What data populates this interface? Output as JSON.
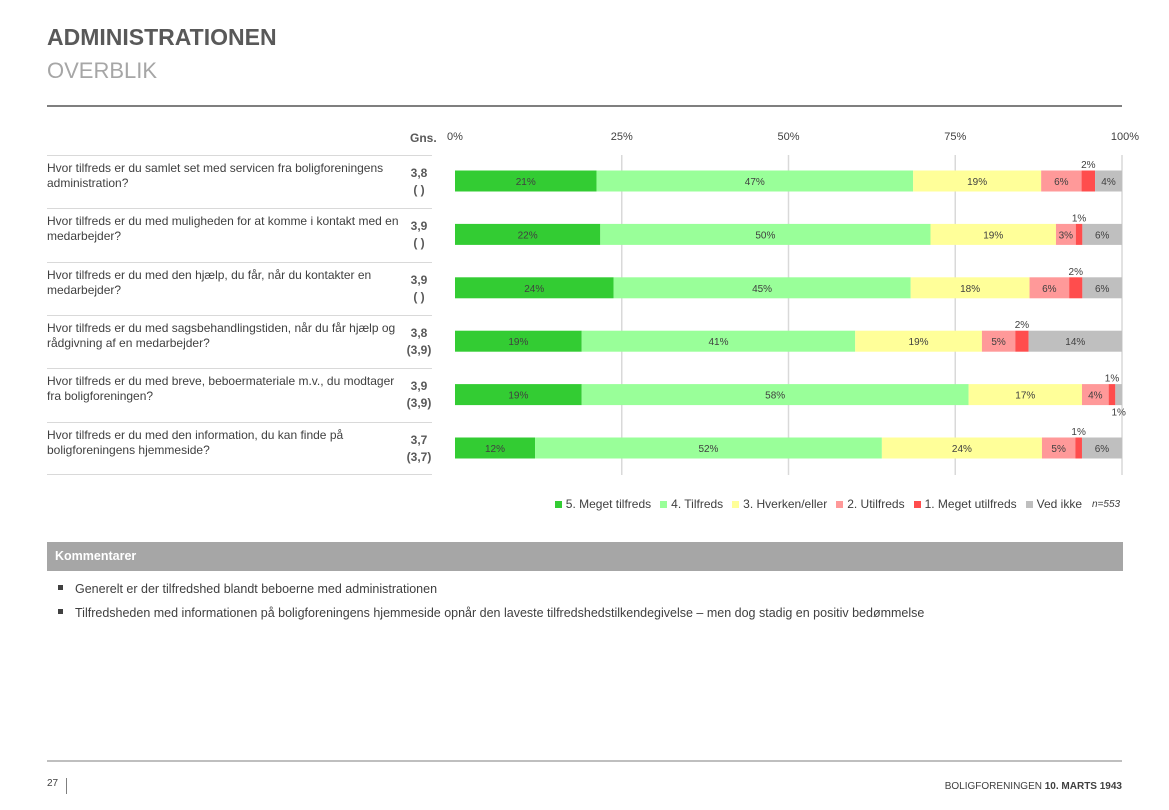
{
  "header": {
    "title": "ADMINISTRATIONEN",
    "subtitle": "OVERBLIK"
  },
  "table": {
    "gns_header": "Gns.",
    "rows": [
      {
        "question": "Hvor tilfreds er du samlet set med servicen fra boligforeningens administration?",
        "avg": "3,8",
        "prev": "(  )"
      },
      {
        "question": "Hvor tilfreds er du med muligheden for at komme i kontakt med en medarbejder?",
        "avg": "3,9",
        "prev": "(  )"
      },
      {
        "question": "Hvor tilfreds er du med den hjælp, du får, når du kontakter en medarbejder?",
        "avg": "3,9",
        "prev": "(  )"
      },
      {
        "question": "Hvor tilfreds er du med sagsbehandlingstiden, når du får hjælp og rådgivning af en medarbejder?",
        "avg": "3,8",
        "prev": "(3,9)"
      },
      {
        "question": "Hvor tilfreds er du med breve, beboermateriale m.v., du modtager fra boligforeningen?",
        "avg": "3,9",
        "prev": "(3,9)"
      },
      {
        "question": "Hvor tilfreds er du med den information, du kan finde på boligforeningens hjemmeside?",
        "avg": "3,7",
        "prev": "(3,7)"
      }
    ]
  },
  "chart_data": {
    "type": "bar",
    "orientation": "horizontal",
    "stacked": true,
    "xlim": [
      0,
      100
    ],
    "x_ticks": [
      "0%",
      "25%",
      "50%",
      "75%",
      "100%"
    ],
    "grid": true,
    "legend_position": "bottom",
    "note": "n=553",
    "series": [
      {
        "name": "5. Meget tilfreds",
        "color": "#33cc33",
        "values": [
          21,
          22,
          24,
          19,
          19,
          12
        ]
      },
      {
        "name": "4. Tilfreds",
        "color": "#99ff99",
        "values": [
          47,
          50,
          45,
          41,
          58,
          52
        ]
      },
      {
        "name": "3. Hverken/eller",
        "color": "#ffff99",
        "values": [
          19,
          19,
          18,
          19,
          17,
          24
        ]
      },
      {
        "name": "2. Utilfreds",
        "color": "#ff9999",
        "values": [
          6,
          3,
          6,
          5,
          4,
          5
        ]
      },
      {
        "name": "1. Meget utilfreds",
        "color": "#ff4d4d",
        "values": [
          2,
          1,
          2,
          2,
          1,
          1
        ]
      },
      {
        "name": "Ved ikke",
        "color": "#bfbfbf",
        "values": [
          4,
          6,
          6,
          14,
          1,
          6
        ]
      }
    ]
  },
  "comments": {
    "title": "Kommentarer",
    "items": [
      "Generelt er der tilfredshed blandt beboerne med administrationen",
      "Tilfredsheden med informationen på boligforeningens hjemmeside opnår den laveste tilfredshedstilkendegivelse – men dog stadig en positiv bedømmelse"
    ]
  },
  "footer": {
    "page": "27",
    "org": "BOLIGFORENINGEN ",
    "date": "10. MARTS 1943"
  }
}
